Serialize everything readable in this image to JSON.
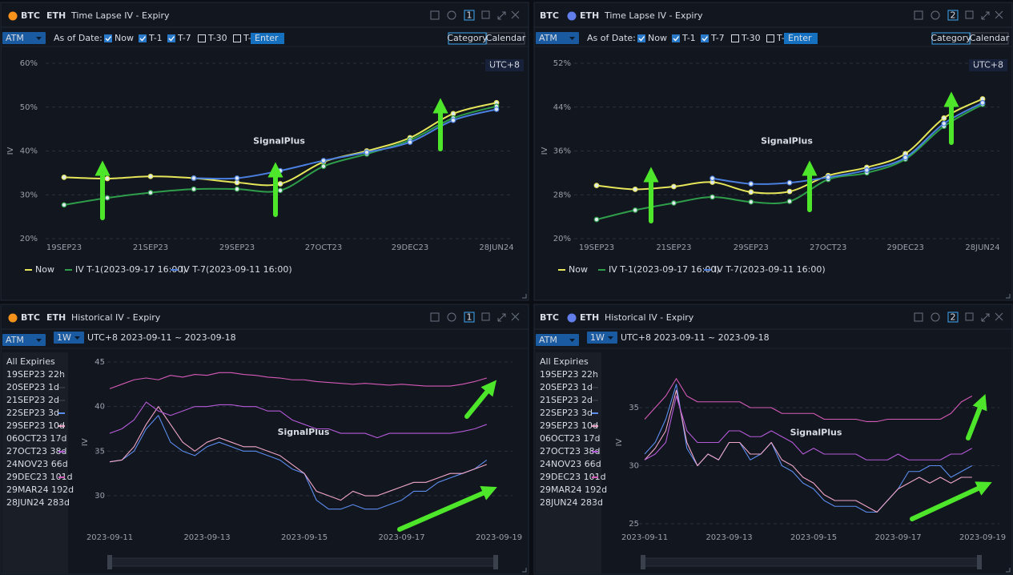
{
  "panels": [
    {
      "coins": [
        "BTC",
        "ETH"
      ],
      "active_coin": "BTC",
      "title": "Time Lapse IV - Expiry",
      "badge": "1",
      "mode": "ATM",
      "as_of": "As of Date:",
      "options": [
        "Now",
        "T-1",
        "T-7",
        "T-30",
        "T-"
      ],
      "checked": [
        true,
        true,
        true,
        false,
        false
      ],
      "input": "Enter",
      "views": [
        "Category",
        "Calendar"
      ],
      "active_view": "Category",
      "timezone": "UTC+8",
      "watermark": "SignalPlus"
    },
    {
      "coins": [
        "BTC",
        "ETH"
      ],
      "active_coin": "ETH",
      "title": "Time Lapse IV - Expiry",
      "badge": "2",
      "mode": "ATM",
      "as_of": "As of Date:",
      "options": [
        "Now",
        "T-1",
        "T-7",
        "T-30",
        "T-"
      ],
      "checked": [
        true,
        true,
        true,
        false,
        false
      ],
      "input": "Enter",
      "views": [
        "Category",
        "Calendar"
      ],
      "active_view": "Category",
      "timezone": "UTC+8",
      "watermark": "SignalPlus"
    },
    {
      "coins": [
        "BTC",
        "ETH"
      ],
      "active_coin": "BTC",
      "title": "Historical IV - Expiry",
      "badge": "1",
      "mode": "ATM",
      "period": "1W",
      "range": "UTC+8 2023-09-11 ~ 2023-09-18",
      "watermark": "SignalPlus"
    },
    {
      "coins": [
        "BTC",
        "ETH"
      ],
      "active_coin": "ETH",
      "title": "Historical IV - Expiry",
      "badge": "2",
      "mode": "ATM",
      "period": "1W",
      "range": "UTC+8 2023-09-11 ~ 2023-09-18",
      "watermark": "SignalPlus"
    }
  ],
  "chart_data": [
    {
      "type": "line",
      "smooth": true,
      "markers": true,
      "legend": "bottom",
      "grid": true,
      "y_label": "IV",
      "categories": [
        "19SEP23",
        null,
        "21SEP23",
        null,
        "29SEP23",
        null,
        "27OCT23",
        null,
        "29DEC23",
        null,
        "28JUN24"
      ],
      "ylim": [
        20,
        60
      ],
      "yticks": [
        {
          "value": 20,
          "label": "20%"
        },
        {
          "value": 30,
          "label": "30%"
        },
        {
          "value": 40,
          "label": "40%"
        },
        {
          "value": 50,
          "label": "50%"
        },
        {
          "value": 60,
          "label": "60%"
        }
      ],
      "series": [
        {
          "name": "Now",
          "color": "#e6e65a",
          "values": [
            34,
            33.7,
            34.2,
            33.8,
            32.8,
            32.5,
            37.5,
            40,
            43,
            48.5,
            51
          ]
        },
        {
          "name": "IV T-1",
          "as_of": "(2023-09-17 16:00)",
          "color": "#2e9e4a",
          "values": [
            27.7,
            29.3,
            30.5,
            31.3,
            31.3,
            31,
            36.5,
            39.3,
            42.5,
            47.5,
            50.2
          ]
        },
        {
          "name": "IV T-7",
          "as_of": "(2023-09-11 16:00)",
          "color": "#4a7fe0",
          "values": [
            null,
            null,
            null,
            33.8,
            33.8,
            35.5,
            37.8,
            39.7,
            42,
            47,
            49.5
          ]
        }
      ]
    },
    {
      "type": "line",
      "smooth": true,
      "markers": true,
      "legend": "bottom",
      "grid": true,
      "y_label": "IV",
      "categories": [
        "19SEP23",
        null,
        "21SEP23",
        null,
        "29SEP23",
        null,
        "27OCT23",
        null,
        "29DEC23",
        null,
        "28JUN24"
      ],
      "ylim": [
        20,
        52
      ],
      "yticks": [
        {
          "value": 20,
          "label": "20%"
        },
        {
          "value": 28,
          "label": "28%"
        },
        {
          "value": 36,
          "label": "36%"
        },
        {
          "value": 44,
          "label": "44%"
        },
        {
          "value": 52,
          "label": "52%"
        }
      ],
      "series": [
        {
          "name": "Now",
          "color": "#e6e65a",
          "values": [
            29.7,
            29,
            29.5,
            30.3,
            28.5,
            28.6,
            31.5,
            33,
            35.5,
            42,
            45.5
          ]
        },
        {
          "name": "IV T-1",
          "as_of": "(2023-09-17 16:00)",
          "color": "#2e9e4a",
          "values": [
            23.5,
            25.2,
            26.5,
            27.6,
            26.7,
            26.8,
            30.8,
            32,
            34.5,
            40.5,
            44.5
          ]
        },
        {
          "name": "IV T-7",
          "as_of": "(2023-09-11 16:00)",
          "color": "#4a7fe0",
          "values": [
            null,
            null,
            null,
            31,
            30,
            30.2,
            31.2,
            32.5,
            34.8,
            41,
            44.8
          ]
        }
      ]
    },
    {
      "type": "line",
      "smooth": false,
      "markers": false,
      "legend": "left",
      "grid": true,
      "y_label": "IV",
      "expiries_header": "All Expiries",
      "expiries": [
        "19SEP23 22h",
        "20SEP23 1d",
        "21SEP23 2d",
        "22SEP23 3d",
        "29SEP23 10d",
        "06OCT23 17d",
        "27OCT23 38d",
        "24NOV23 66d",
        "29DEC23 101d",
        "29MAR24 192d",
        "28JUN24 283d"
      ],
      "categories": [
        "2023-09-11",
        null,
        null,
        null,
        null,
        null,
        null,
        null,
        "2023-09-13",
        null,
        null,
        null,
        null,
        null,
        null,
        null,
        "2023-09-15",
        null,
        null,
        null,
        null,
        null,
        null,
        null,
        "2023-09-17",
        null,
        null,
        null,
        null,
        null,
        null,
        null,
        "2023-09-19"
      ],
      "ylim": [
        26.5,
        45.5
      ],
      "yticks": [
        30,
        35,
        40,
        45
      ],
      "series": [
        {
          "name": "22SEP23 3d",
          "color": "#5b8def",
          "values": [
            33.8,
            34,
            35,
            37.5,
            39,
            36,
            35,
            34.5,
            35.5,
            36,
            35.5,
            35,
            35,
            34.5,
            34,
            33,
            32.5,
            29.5,
            28.5,
            28.5,
            29,
            28.5,
            28.5,
            29,
            29.5,
            30.5,
            30.5,
            31.5,
            32,
            32.5,
            33,
            34,
            null
          ]
        },
        {
          "name": "29SEP23 10d",
          "color": "#f0a6c8",
          "values": [
            33.8,
            34,
            35.5,
            38,
            40,
            38,
            36,
            35,
            36,
            36.5,
            36,
            35.5,
            35.5,
            35,
            34.5,
            33.5,
            32.5,
            30.5,
            30,
            29.5,
            30.5,
            30,
            30,
            30.5,
            31,
            31.5,
            31.5,
            32,
            32.5,
            32.5,
            33,
            33.5,
            null
          ]
        },
        {
          "name": "27OCT23 38d",
          "color": "#b45ad8",
          "values": [
            37,
            37.5,
            38.5,
            40.5,
            39.5,
            39,
            39.5,
            40,
            40,
            40.2,
            40.2,
            40,
            40,
            39.5,
            39.5,
            38.5,
            38,
            37.5,
            37.5,
            37,
            37,
            37,
            36.5,
            37,
            37,
            37,
            37,
            37,
            37,
            37.2,
            37.5,
            38,
            null
          ]
        },
        {
          "name": "29DEC23 101d",
          "color": "#d65ab8",
          "values": [
            42,
            42.5,
            43,
            43.2,
            43,
            43.5,
            43.3,
            43.6,
            43.5,
            43.8,
            43.8,
            43.6,
            43.5,
            43.3,
            43.2,
            43,
            43,
            42.8,
            42.7,
            42.6,
            42.5,
            42.6,
            42.5,
            42.4,
            42.5,
            42.4,
            42.3,
            42.3,
            42.3,
            42.5,
            42.8,
            43.2,
            null
          ]
        }
      ]
    },
    {
      "type": "line",
      "smooth": false,
      "markers": false,
      "legend": "left",
      "grid": true,
      "y_label": "IV",
      "expiries_header": "All Expiries",
      "expiries": [
        "19SEP23 22h",
        "20SEP23 1d",
        "21SEP23 2d",
        "22SEP23 3d",
        "29SEP23 10d",
        "06OCT23 17d",
        "27OCT23 38d",
        "24NOV23 66d",
        "29DEC23 101d",
        "29MAR24 192d",
        "28JUN24 283d"
      ],
      "categories": [
        "2023-09-11",
        null,
        null,
        null,
        null,
        null,
        null,
        null,
        "2023-09-13",
        null,
        null,
        null,
        null,
        null,
        null,
        null,
        "2023-09-15",
        null,
        null,
        null,
        null,
        null,
        null,
        null,
        "2023-09-17",
        null,
        null,
        null,
        null,
        null,
        null,
        null,
        "2023-09-19"
      ],
      "ylim": [
        24.5,
        39.5
      ],
      "yticks": [
        25,
        30,
        35
      ],
      "series": [
        {
          "name": "22SEP23 3d",
          "color": "#5b8def",
          "values": [
            31,
            32,
            34,
            37,
            31.5,
            30,
            31,
            30.5,
            32,
            32,
            30.5,
            31,
            32,
            30,
            29.5,
            28.5,
            28,
            27,
            26.5,
            26.5,
            26.5,
            26,
            26,
            27,
            28,
            29.5,
            29.5,
            30,
            30,
            29,
            29.5,
            30,
            null
          ]
        },
        {
          "name": "29SEP23 10d",
          "color": "#f0a6c8",
          "values": [
            30.5,
            31.5,
            33,
            36.5,
            32,
            30,
            31,
            30.5,
            32,
            32,
            31,
            31,
            32,
            30.5,
            30,
            29,
            28.5,
            27.5,
            27,
            27,
            27,
            26.5,
            26,
            27,
            28,
            28.5,
            29,
            28.5,
            29,
            28.5,
            29,
            29,
            null
          ]
        },
        {
          "name": "27OCT23 38d",
          "color": "#b45ad8",
          "values": [
            30.5,
            31,
            32,
            36,
            33,
            32,
            32,
            32,
            33,
            33,
            32.5,
            32.5,
            33,
            32.5,
            32,
            31,
            31.5,
            31,
            31,
            31,
            31,
            30.5,
            30.5,
            30.5,
            31,
            30.5,
            30.5,
            30.5,
            30.5,
            31,
            31,
            31.5,
            null
          ]
        },
        {
          "name": "29DEC23 101d",
          "color": "#d65ab8",
          "values": [
            34,
            35,
            36,
            37.5,
            36,
            35.5,
            35.5,
            35.5,
            35.5,
            35.5,
            35,
            35,
            35,
            34.5,
            34.5,
            34.5,
            34.5,
            34,
            34,
            34,
            34,
            33.8,
            33.8,
            34,
            34,
            34,
            34,
            34,
            34,
            34.5,
            35.5,
            36,
            null
          ]
        }
      ]
    }
  ]
}
